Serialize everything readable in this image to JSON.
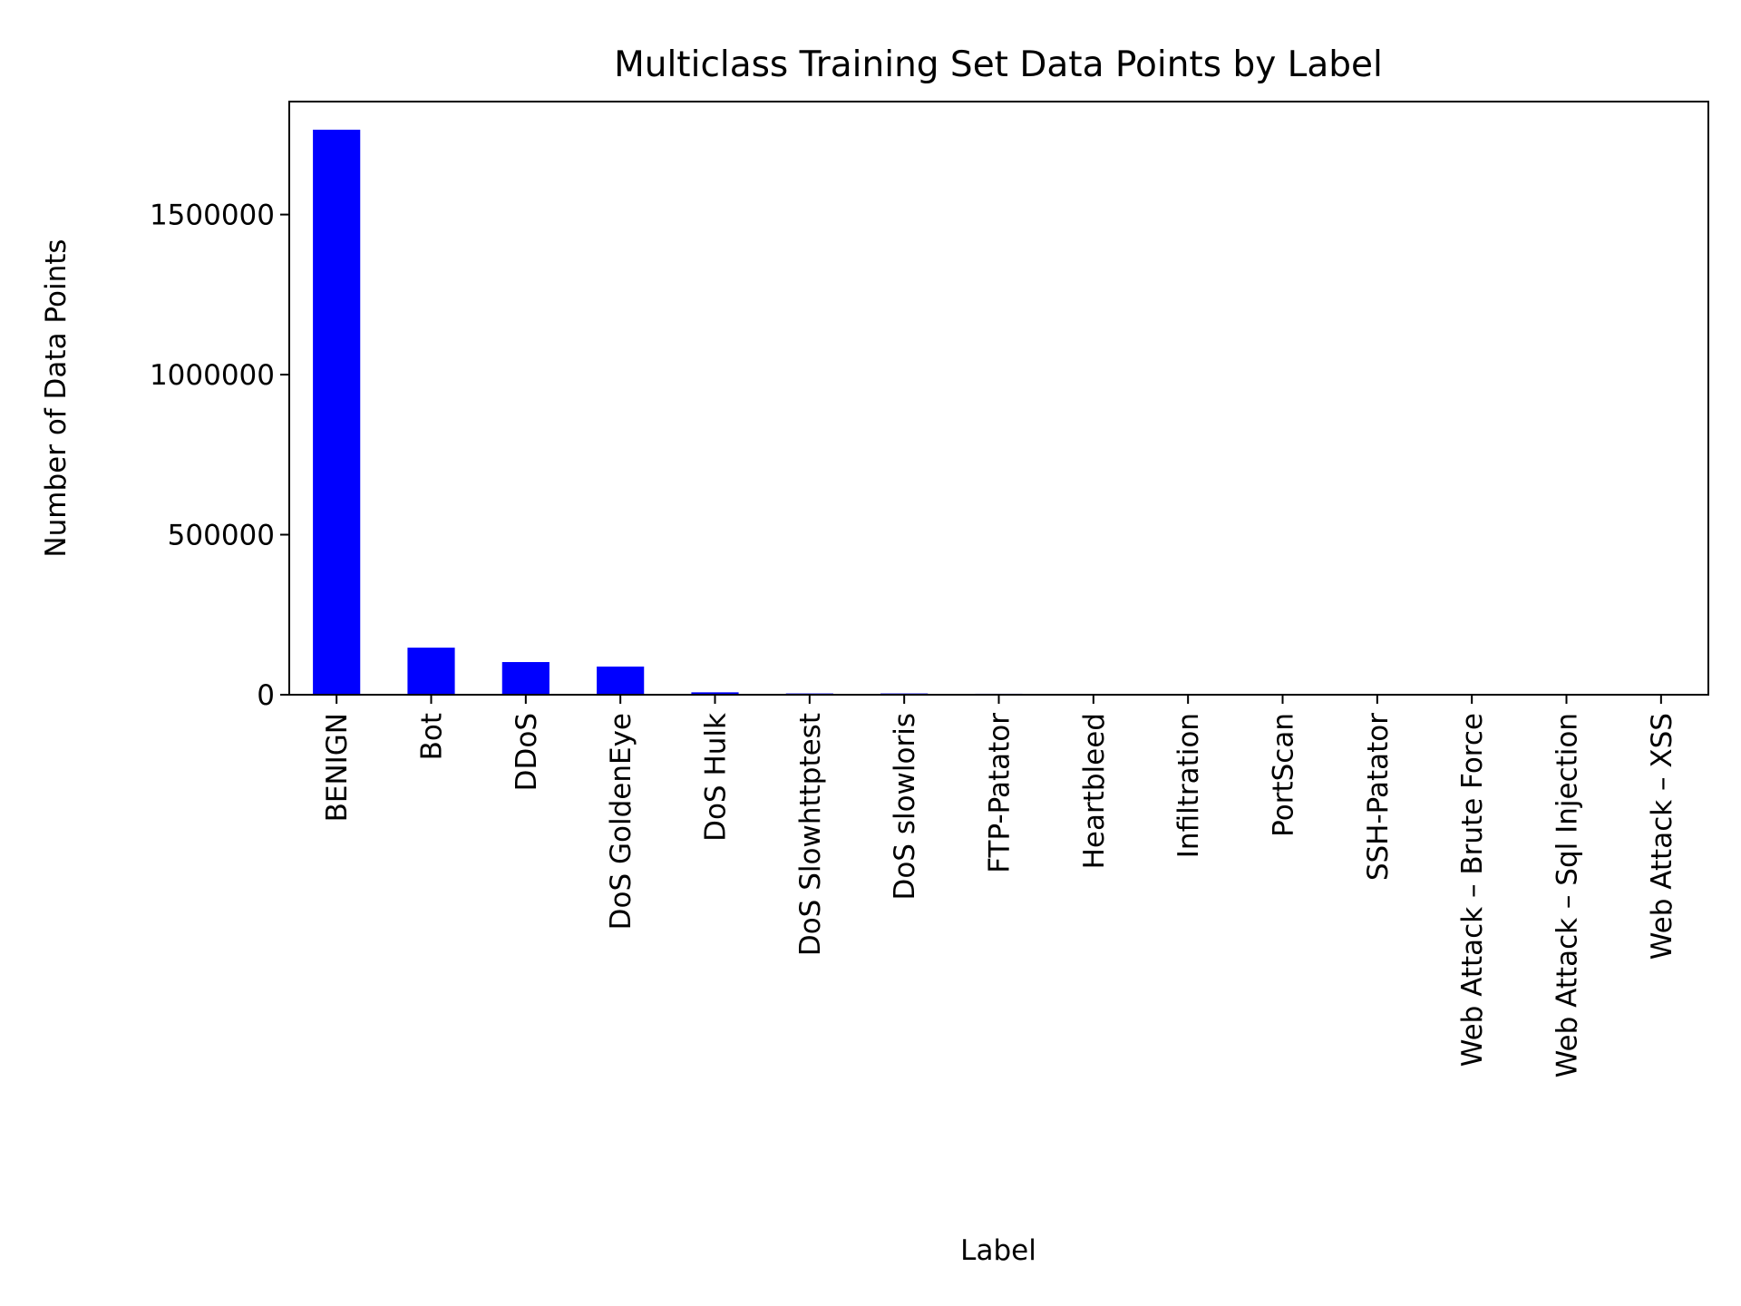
{
  "chart_data": {
    "type": "bar",
    "title": "Multiclass Training Set Data Points by Label",
    "xlabel": "Label",
    "ylabel": "Number of Data Points",
    "categories": [
      "BENIGN",
      "Bot",
      "DDoS",
      "DoS GoldenEye",
      "DoS Hulk",
      "DoS Slowhttptest",
      "DoS slowloris",
      "FTP-Patator",
      "Heartbleed",
      "Infiltration",
      "PortScan",
      "SSH-Patator",
      "Web Attack – Brute Force",
      "Web Attack – Sql Injection",
      "Web Attack – XSS"
    ],
    "values": [
      1765000,
      147000,
      102000,
      88000,
      7500,
      4000,
      4000,
      3000,
      0,
      0,
      0,
      0,
      0,
      0,
      0
    ],
    "ylim": [
      0,
      1853000
    ],
    "yticks": [
      0,
      500000,
      1000000,
      1500000
    ],
    "ytick_labels": [
      "0",
      "500000",
      "1000000",
      "1500000"
    ],
    "bar_color": "#0000ff",
    "grid": false,
    "legend": "none"
  }
}
